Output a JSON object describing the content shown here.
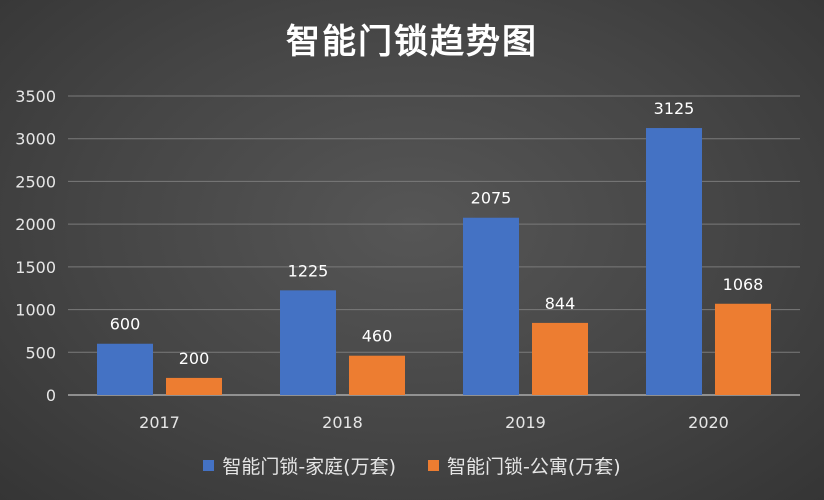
{
  "chart_data": {
    "type": "bar",
    "title": "智能门锁趋势图",
    "categories": [
      "2017",
      "2018",
      "2019",
      "2020"
    ],
    "series": [
      {
        "name": "智能门锁-家庭(万套)",
        "values": [
          600,
          1225,
          2075,
          3125
        ],
        "color": "#4472C4"
      },
      {
        "name": "智能门锁-公寓(万套)",
        "values": [
          200,
          460,
          844,
          1068
        ],
        "color": "#ED7D31"
      }
    ],
    "y_ticks": [
      "0",
      "500",
      "1000",
      "1500",
      "2000",
      "2500",
      "3000",
      "3500"
    ],
    "ylim": [
      0,
      3500
    ],
    "grid": true,
    "legend_position": "bottom"
  }
}
